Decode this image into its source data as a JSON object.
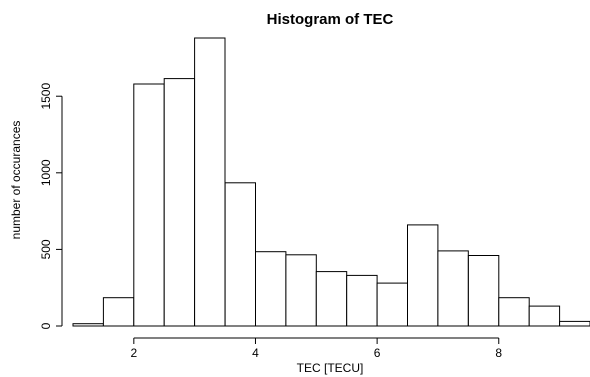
{
  "chart_data": {
    "type": "bar",
    "title": "Histogram of TEC",
    "xlabel": "TEC [TECU]",
    "ylabel": "number of occurances",
    "bin_width": 0.5,
    "bins": [
      {
        "x0": 1.0,
        "x1": 1.5,
        "count": 15
      },
      {
        "x0": 1.5,
        "x1": 2.0,
        "count": 185
      },
      {
        "x0": 2.0,
        "x1": 2.5,
        "count": 1580
      },
      {
        "x0": 2.5,
        "x1": 3.0,
        "count": 1615
      },
      {
        "x0": 3.0,
        "x1": 3.5,
        "count": 1880
      },
      {
        "x0": 3.5,
        "x1": 4.0,
        "count": 935
      },
      {
        "x0": 4.0,
        "x1": 4.5,
        "count": 485
      },
      {
        "x0": 4.5,
        "x1": 5.0,
        "count": 465
      },
      {
        "x0": 5.0,
        "x1": 5.5,
        "count": 355
      },
      {
        "x0": 5.5,
        "x1": 6.0,
        "count": 330
      },
      {
        "x0": 6.0,
        "x1": 6.5,
        "count": 280
      },
      {
        "x0": 6.5,
        "x1": 7.0,
        "count": 660
      },
      {
        "x0": 7.0,
        "x1": 7.5,
        "count": 490
      },
      {
        "x0": 7.5,
        "x1": 8.0,
        "count": 460
      },
      {
        "x0": 8.0,
        "x1": 8.5,
        "count": 185
      },
      {
        "x0": 8.5,
        "x1": 9.0,
        "count": 130
      },
      {
        "x0": 9.0,
        "x1": 9.5,
        "count": 30
      }
    ],
    "x_ticks": [
      2,
      4,
      6,
      8
    ],
    "y_ticks": [
      0,
      500,
      1000,
      1500
    ],
    "xlim": [
      1.0,
      9.5
    ],
    "ylim": [
      0,
      1880
    ],
    "grid": false,
    "bar_fill": "#ffffff",
    "bar_stroke": "#000000"
  }
}
